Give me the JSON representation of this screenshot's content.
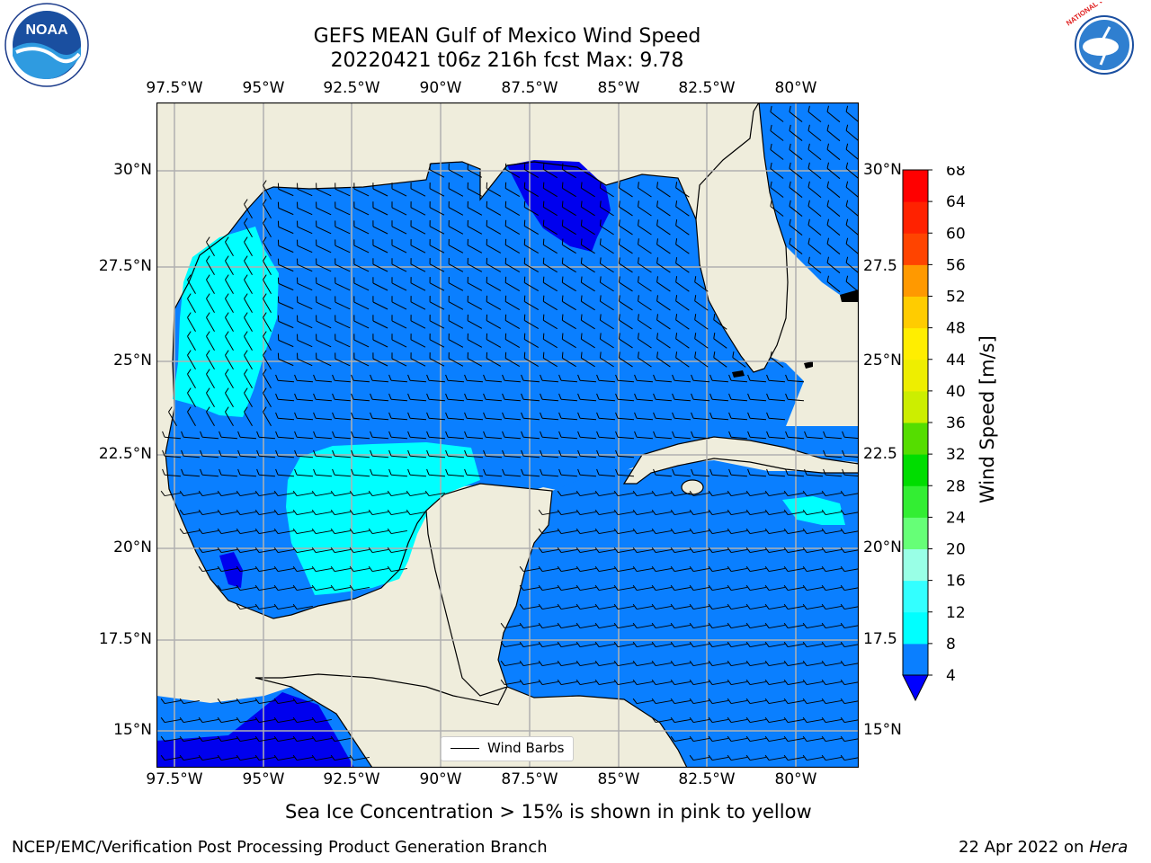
{
  "title": {
    "line1": "GEFS MEAN Gulf of Mexico Wind Speed",
    "line2": "20220421 t06z 216h fcst   Max: 9.78"
  },
  "lon_labels": [
    "97.5°W",
    "95°W",
    "92.5°W",
    "90°W",
    "87.5°W",
    "85°W",
    "82.5°W",
    "80°W"
  ],
  "lat_labels": [
    "30°N",
    "27.5°N",
    "25°N",
    "22.5°N",
    "20°N",
    "17.5°N",
    "15°N"
  ],
  "lat_labels_right": [
    "30°N",
    "27.5",
    "25°N",
    "22.5",
    "20°N",
    "17.5",
    "15°N"
  ],
  "colorbar": {
    "label": "Wind Speed [m/s]",
    "ticks": [
      "4",
      "8",
      "12",
      "16",
      "20",
      "24",
      "28",
      "32",
      "36",
      "40",
      "44",
      "48",
      "52",
      "56",
      "60",
      "64",
      "68"
    ],
    "colors": [
      "#0a7fff",
      "#00ffff",
      "#33ffff",
      "#66ffff",
      "#99ffe6",
      "#66ff77",
      "#33ee33",
      "#00dd00",
      "#55dd00",
      "#aadd00",
      "#ccee00",
      "#eeee00",
      "#ffee00",
      "#ffcc00",
      "#ff9900",
      "#ff7700",
      "#ff4400",
      "#ff2200",
      "#ff0000"
    ],
    "under_color": "#0000ff"
  },
  "legend": {
    "label": "Wind Barbs"
  },
  "colors": {
    "land": "#efeddc",
    "ocean_4_8": "#0a7fff",
    "ocean_8_12": "#00ffff",
    "ocean_below_4": "#0000ee",
    "grid": "#b0b0b0"
  },
  "footer": {
    "ice_note": "Sea Ice Concentration > 15% is shown in pink to yellow",
    "branch": "NCEP/EMC/Verification Post Processing Product Generation Branch",
    "date": "22 Apr 2022 on",
    "machine": "Hera"
  },
  "logos": {
    "noaa_text": "NOAA",
    "nws_text": "NATIONAL WEATHER SERVICE"
  }
}
